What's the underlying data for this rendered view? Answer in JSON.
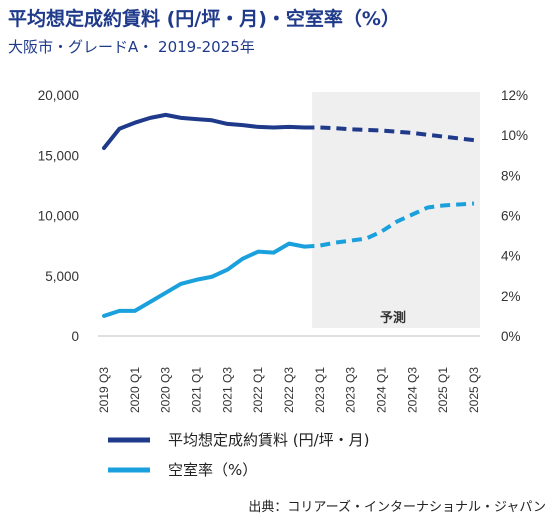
{
  "chart_data": {
    "type": "line",
    "title": "平均想定成約賃料 (円/坪・月)・空室率（%）",
    "subtitle": "大阪市・グレードA・ 2019-2025年",
    "categories": [
      "2019 Q3",
      "2019 Q4",
      "2020 Q1",
      "2020 Q2",
      "2020 Q3",
      "2020 Q4",
      "2021 Q1",
      "2021 Q2",
      "2021 Q3",
      "2021 Q4",
      "2022 Q1",
      "2022 Q2",
      "2022 Q3",
      "2022 Q4",
      "2023 Q1",
      "2023 Q2",
      "2023 Q3",
      "2023 Q4",
      "2024 Q1",
      "2024 Q2",
      "2024 Q3",
      "2024 Q4",
      "2025 Q1",
      "2025 Q2",
      "2025 Q3"
    ],
    "x_tick_labels": [
      "2019 Q3",
      "2020 Q1",
      "2020 Q3",
      "2021 Q1",
      "2021 Q3",
      "2022 Q1",
      "2022 Q3",
      "2023 Q1",
      "2023 Q3",
      "2024 Q1",
      "2024 Q3",
      "2025 Q1",
      "2025 Q3"
    ],
    "y_left": {
      "ylim": [
        0,
        20000
      ],
      "ticks": [
        "0",
        "5,000",
        "10,000",
        "15,000",
        "20,000"
      ]
    },
    "y_right": {
      "ylim": [
        0,
        12
      ],
      "ticks": [
        "0%",
        "2%",
        "4%",
        "6%",
        "8%",
        "10%",
        "12%"
      ]
    },
    "forecast_start": "2022 Q4",
    "forecast_label": "予測",
    "series": [
      {
        "name": "平均想定成約賃料 (円/坪・月)",
        "axis": "left",
        "color": "#1f3a8a",
        "values": [
          15600,
          17200,
          17700,
          18100,
          18350,
          18100,
          18000,
          17900,
          17600,
          17500,
          17350,
          17300,
          17350,
          17300,
          17300,
          17250,
          17150,
          17100,
          17050,
          16950,
          16850,
          16700,
          16550,
          16400,
          16250
        ]
      },
      {
        "name": "空室率（%）",
        "axis": "right",
        "color": "#1aa0dc",
        "values": [
          1.0,
          1.25,
          1.25,
          1.7,
          2.15,
          2.6,
          2.8,
          2.95,
          3.3,
          3.85,
          4.2,
          4.15,
          4.6,
          4.45,
          4.5,
          4.65,
          4.75,
          4.85,
          5.2,
          5.7,
          6.05,
          6.4,
          6.5,
          6.55,
          6.6
        ]
      }
    ],
    "legend_position": "bottom",
    "source": "出典：コリアーズ・インターナショナル・ジャパン"
  }
}
